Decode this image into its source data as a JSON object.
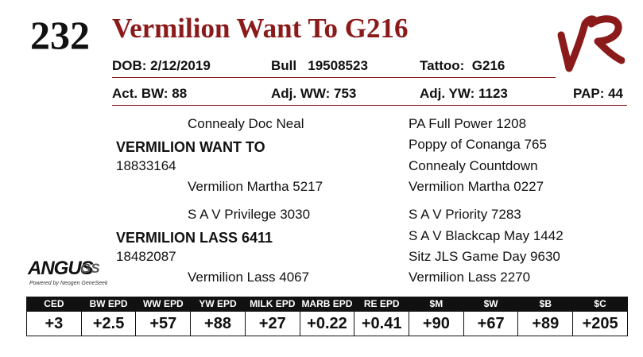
{
  "header": {
    "lot_number": "232",
    "animal_name": "Vermilion Want To G216",
    "logo_mark": "VR brand monogram"
  },
  "info_row_1": {
    "dob": "DOB: 2/12/2019",
    "registration": "Bull   19508523",
    "tattoo": "Tattoo:  G216"
  },
  "info_row_2": {
    "birth_weight": "Act. BW: 88",
    "weaning_weight": "Adj. WW: 753",
    "yearling_weight": "Adj. YW: 1123",
    "pap": "PAP: 44"
  },
  "pedigree": {
    "sire_sire": "Connealy Doc Neal",
    "sire_name": "VERMILION WANT TO",
    "sire_reg": "18833164",
    "sire_dam": "Vermilion Martha 5217",
    "sss": "PA Full Power 1208",
    "ssd": "Poppy of Conanga 765",
    "sds": "Connealy Countdown",
    "sdd": "Vermilion Martha 0227",
    "dam_sire": "S A V Privilege 3030",
    "dam_name": "VERMILION LASS 6411",
    "dam_reg": "18482087",
    "dam_dam": "Vermilion Lass 4067",
    "dss": "S A V Priority 7283",
    "dsd": "S A V Blackcap May 1442",
    "dds": "Sitz JLS Game Day 9630",
    "ddd": "Vermilion Lass 2270"
  },
  "angus_logo": {
    "word": "ANGUS",
    "suffix": "GS",
    "tagline": "Powered by Neogen GeneSeek"
  },
  "epd": {
    "headers": [
      "CED",
      "BW EPD",
      "WW EPD",
      "YW EPD",
      "MILK EPD",
      "MARB EPD",
      "RE EPD",
      "$M",
      "$W",
      "$B",
      "$C"
    ],
    "values": [
      "+3",
      "+2.5",
      "+57",
      "+88",
      "+27",
      "+0.22",
      "+0.41",
      "+90",
      "+67",
      "+89",
      "+205"
    ]
  },
  "colors": {
    "brand": "#8b1a1a",
    "text": "#111111",
    "header_bg": "#111111"
  }
}
